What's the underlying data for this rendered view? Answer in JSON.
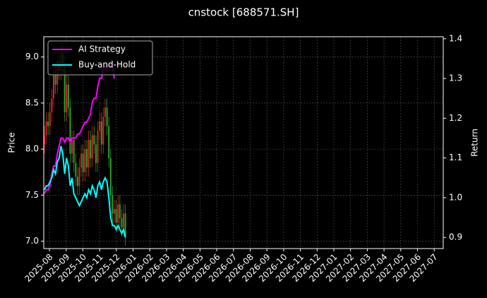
{
  "chart_data": {
    "type": "candlestick",
    "title": "cnstock [688571.SH]",
    "ylabel": "Price",
    "y2label": "Return",
    "up_color": "#d62728",
    "down_color": "#2ca02c",
    "grid": true,
    "legend": "upper left",
    "xlim": [
      -0.34,
      23.54
    ],
    "xticks": [
      {
        "value": 0,
        "label": "2025-08"
      },
      {
        "value": 1,
        "label": "2025-09"
      },
      {
        "value": 2,
        "label": "2025-10"
      },
      {
        "value": 3,
        "label": "2025-11"
      },
      {
        "value": 4,
        "label": "2025-12"
      },
      {
        "value": 5,
        "label": "2026-01"
      },
      {
        "value": 6,
        "label": "2026-02"
      },
      {
        "value": 7,
        "label": "2026-03"
      },
      {
        "value": 8,
        "label": "2026-04"
      },
      {
        "value": 9,
        "label": "2026-05"
      },
      {
        "value": 10,
        "label": "2026-06"
      },
      {
        "value": 11,
        "label": "2026-07"
      },
      {
        "value": 12,
        "label": "2026-08"
      },
      {
        "value": 13,
        "label": "2026-09"
      },
      {
        "value": 14,
        "label": "2026-10"
      },
      {
        "value": 15,
        "label": "2026-11"
      },
      {
        "value": 16,
        "label": "2026-12"
      },
      {
        "value": 17,
        "label": "2027-01"
      },
      {
        "value": 18,
        "label": "2027-02"
      },
      {
        "value": 19,
        "label": "2027-03"
      },
      {
        "value": 20,
        "label": "2027-04"
      },
      {
        "value": 21,
        "label": "2027-05"
      },
      {
        "value": 22,
        "label": "2027-06"
      },
      {
        "value": 23,
        "label": "2027-07"
      }
    ],
    "ylim": [
      6.92,
      9.22
    ],
    "yticks": [
      {
        "value": 7,
        "label": "7.0"
      },
      7.5,
      {
        "value": 8,
        "label": "8.0"
      },
      8.5,
      {
        "value": 9,
        "label": "9.0"
      }
    ],
    "y2lim": [
      0.872,
      1.405
    ],
    "y2ticks": [
      0.9,
      {
        "value": 1,
        "label": "1.0"
      },
      1.1,
      1.2,
      1.3,
      1.4
    ],
    "x": [
      -0.3,
      -0.19,
      -0.08,
      0.03,
      0.14,
      0.25,
      0.36,
      0.47,
      0.58,
      0.69,
      0.8,
      0.91,
      1.02,
      1.13,
      1.24,
      1.35,
      1.46,
      1.57,
      1.68,
      1.79,
      1.9,
      2.01,
      2.12,
      2.23,
      2.34,
      2.45,
      2.56,
      2.67,
      2.78,
      2.89,
      3.0,
      3.11,
      3.22,
      3.33,
      3.44,
      3.55,
      3.66,
      3.77,
      3.88,
      3.99,
      4.1,
      4.21,
      4.32,
      4.43,
      4.54
    ],
    "open": [
      8.05,
      8.15,
      8.3,
      8.25,
      8.4,
      8.55,
      8.8,
      8.7,
      8.95,
      8.85,
      9.05,
      8.9,
      8.4,
      8.7,
      8.45,
      7.95,
      8.1,
      7.85,
      7.7,
      7.6,
      7.8,
      7.95,
      7.75,
      8.0,
      7.8,
      8.1,
      7.9,
      8.15,
      8.05,
      7.85,
      8.2,
      8.3,
      8.05,
      8.35,
      8.45,
      8.25,
      7.9,
      7.5,
      7.3,
      7.35,
      7.2,
      7.4,
      7.25,
      7.15,
      7.3
    ],
    "high": [
      8.25,
      8.4,
      8.4,
      8.5,
      8.65,
      8.9,
      8.9,
      9.05,
      9.05,
      9.15,
      9.15,
      9.0,
      8.8,
      8.8,
      8.55,
      8.2,
      8.2,
      7.95,
      7.8,
      7.9,
      8.05,
      8.05,
      8.1,
      8.1,
      8.2,
      8.2,
      8.25,
      8.25,
      8.15,
      8.3,
      8.4,
      8.4,
      8.45,
      8.55,
      8.55,
      8.35,
      8.0,
      7.6,
      7.45,
      7.45,
      7.5,
      7.5,
      7.35,
      7.4,
      7.4
    ],
    "low": [
      7.95,
      8.05,
      8.15,
      8.15,
      8.3,
      8.45,
      8.6,
      8.6,
      8.75,
      8.75,
      8.8,
      8.3,
      8.3,
      8.35,
      7.85,
      7.85,
      7.75,
      7.6,
      7.5,
      7.5,
      7.7,
      7.65,
      7.65,
      7.7,
      7.7,
      7.8,
      7.8,
      7.95,
      7.75,
      7.75,
      8.1,
      7.95,
      7.95,
      8.25,
      8.15,
      7.8,
      7.4,
      7.2,
      7.2,
      7.1,
      7.1,
      7.15,
      7.05,
      7.05,
      6.95
    ],
    "close": [
      8.15,
      8.3,
      8.25,
      8.4,
      8.55,
      8.8,
      8.7,
      8.95,
      8.85,
      9.05,
      8.9,
      8.4,
      8.7,
      8.45,
      7.95,
      8.1,
      7.85,
      7.7,
      7.6,
      7.8,
      7.95,
      7.75,
      8.0,
      7.8,
      8.1,
      7.9,
      8.15,
      8.05,
      7.85,
      8.2,
      8.3,
      8.05,
      8.35,
      8.45,
      8.25,
      7.9,
      7.5,
      7.3,
      7.35,
      7.2,
      7.4,
      7.25,
      7.15,
      7.3,
      7.05
    ],
    "series": [
      {
        "name": "AI Strategy",
        "color": "#ff00ff",
        "axis": "y2",
        "values": [
          1.01,
          1.02,
          1.02,
          1.03,
          1.06,
          1.08,
          1.08,
          1.11,
          1.13,
          1.15,
          1.15,
          1.14,
          1.15,
          1.15,
          1.14,
          1.15,
          1.15,
          1.15,
          1.16,
          1.16,
          1.17,
          1.18,
          1.19,
          1.19,
          1.2,
          1.21,
          1.24,
          1.25,
          1.25,
          1.28,
          1.3,
          1.3,
          1.32,
          1.33,
          1.33,
          1.34,
          1.33,
          1.33,
          1.3,
          null,
          null,
          null,
          null,
          null,
          null
        ]
      },
      {
        "name": "Buy-and-Hold",
        "color": "#00ffff",
        "axis": "y2",
        "values": [
          1.02,
          1.03,
          1.03,
          1.04,
          1.05,
          1.07,
          1.06,
          1.09,
          1.1,
          1.13,
          1.11,
          1.06,
          1.1,
          1.08,
          1.03,
          1.05,
          1.01,
          1.0,
          0.99,
          0.98,
          0.99,
          1.0,
          1.01,
          1.0,
          1.02,
          1.01,
          1.03,
          1.02,
          1.0,
          1.03,
          1.04,
          1.02,
          1.04,
          1.05,
          1.04,
          1.0,
          0.95,
          0.93,
          0.93,
          0.92,
          0.93,
          0.92,
          0.91,
          0.92,
          0.9
        ]
      }
    ]
  }
}
